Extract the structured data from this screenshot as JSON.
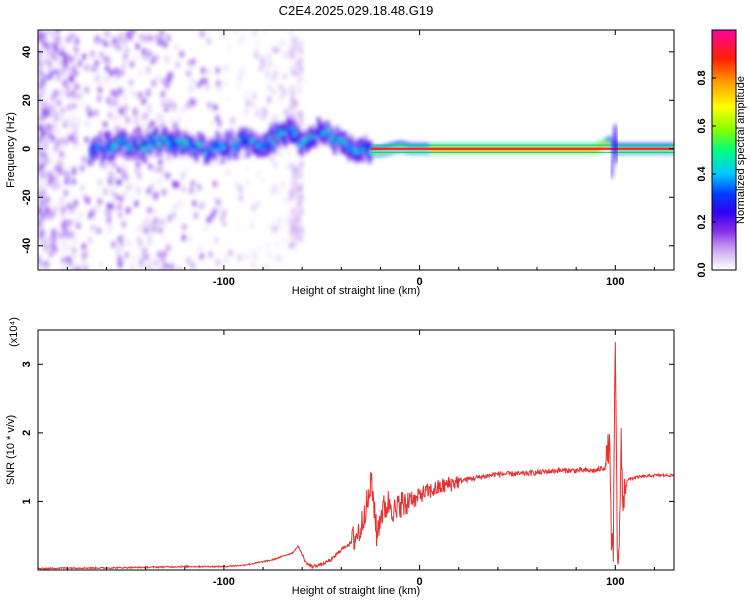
{
  "chart_data": [
    {
      "type": "heatmap",
      "title": "C2E4.2025.029.18.48.G19",
      "xlabel": "Height of straight line (km)",
      "ylabel": "Frequency (Hz)",
      "xlim": [
        -195,
        130
      ],
      "ylim": [
        -50,
        49
      ],
      "xticks": [
        -100,
        0,
        100
      ],
      "xtick_labels": [
        "-100",
        "0",
        "100"
      ],
      "yticks": [
        -40,
        -20,
        0,
        20,
        40
      ],
      "ytick_labels": [
        "-40",
        "-20",
        "0",
        "20",
        "40"
      ],
      "colorbar": {
        "label": "Normalized spectral amplitude",
        "range": [
          0,
          1
        ],
        "ticks": [
          0.0,
          0.2,
          0.4,
          0.6,
          0.8
        ],
        "tick_labels": [
          "0.0",
          "0.2",
          "0.4",
          "0.6",
          "0.8"
        ],
        "colors": [
          "#ffffff",
          "#e8d8f8",
          "#b07ef0",
          "#7a22e8",
          "#3000f0",
          "#0040ff",
          "#00c8ff",
          "#00ff80",
          "#80ff00",
          "#ffff00",
          "#ffa000",
          "#ff2000",
          "#ff00a0"
        ]
      },
      "ridge": {
        "x": [
          -165,
          -150,
          -140,
          -130,
          -120,
          -110,
          -100,
          -90,
          -80,
          -70,
          -65,
          -60,
          -55,
          -50,
          -45,
          -40,
          -35,
          -30,
          -27,
          -25,
          -20,
          -15,
          -10,
          -5,
          0,
          10,
          50,
          90,
          95,
          97,
          100,
          105,
          130
        ],
        "y": [
          0,
          2,
          1,
          4,
          1,
          0,
          1,
          3,
          2,
          6,
          8,
          3,
          6,
          7,
          5,
          3,
          0,
          -2,
          0,
          -1,
          -1,
          0,
          1,
          0,
          0,
          0,
          0,
          0,
          2,
          3,
          0,
          0,
          0
        ]
      },
      "grid": false
    },
    {
      "type": "line",
      "title": "",
      "xlabel": "Height of straight line (km)",
      "ylabel": "SNR (10 * v/v)",
      "scale_note": "(x10⁴)",
      "xlim": [
        -195,
        130
      ],
      "ylim": [
        0,
        3.5
      ],
      "xticks": [
        -100,
        0,
        100
      ],
      "xtick_labels": [
        "-100",
        "0",
        "100"
      ],
      "yticks": [
        1,
        2,
        3
      ],
      "ytick_labels": [
        "1",
        "2",
        "3"
      ],
      "series": [
        {
          "color": "#e83030",
          "x": [
            -195,
            -180,
            -160,
            -140,
            -120,
            -100,
            -90,
            -80,
            -75,
            -70,
            -65,
            -62,
            -58,
            -55,
            -50,
            -45,
            -40,
            -35,
            -30,
            -28,
            -26,
            -25,
            -23,
            -22,
            -20,
            -18,
            -15,
            -12,
            -10,
            -7,
            -5,
            -2,
            0,
            5,
            10,
            20,
            30,
            40,
            50,
            60,
            70,
            80,
            90,
            95,
            97,
            98,
            99,
            100,
            101,
            102,
            103,
            104,
            105,
            110,
            120,
            130
          ],
          "y": [
            0.02,
            0.03,
            0.03,
            0.04,
            0.05,
            0.05,
            0.07,
            0.12,
            0.15,
            0.2,
            0.25,
            0.35,
            0.1,
            0.05,
            0.08,
            0.15,
            0.3,
            0.4,
            0.6,
            0.9,
            1.0,
            1.3,
            0.9,
            0.5,
            0.8,
            0.9,
            1.0,
            0.8,
            1.0,
            0.9,
            1.1,
            1.0,
            1.1,
            1.15,
            1.2,
            1.3,
            1.35,
            1.4,
            1.4,
            1.42,
            1.45,
            1.45,
            1.45,
            1.5,
            1.9,
            0.5,
            0.2,
            3.4,
            0.3,
            0.15,
            2.0,
            0.8,
            1.3,
            1.35,
            1.38,
            1.38
          ]
        }
      ],
      "grid": false
    }
  ]
}
